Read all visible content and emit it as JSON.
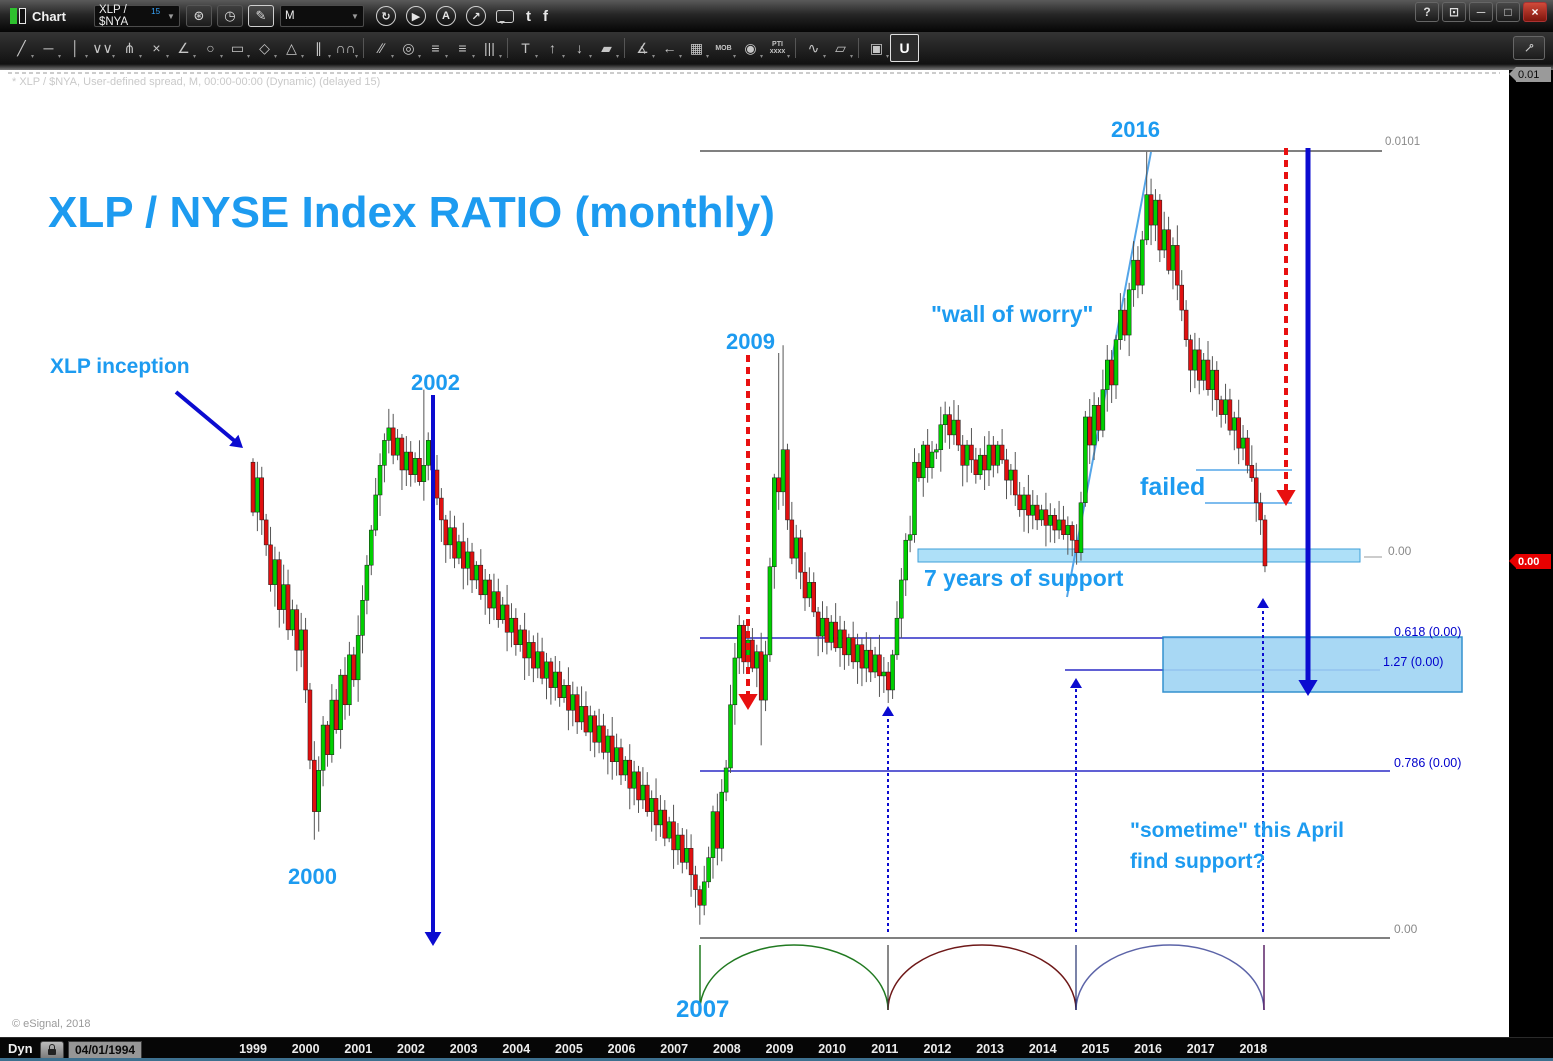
{
  "titlebar": {
    "title": "Chart",
    "symbol": "XLP / $NYA",
    "symbol_sup": "15",
    "interval": "M",
    "buttons": [
      {
        "name": "symbol-settings-gear-icon",
        "glyph": "⊛"
      },
      {
        "name": "time-template-clock-icon",
        "glyph": "◷"
      },
      {
        "name": "draw-pencil-icon",
        "glyph": "✎",
        "hl": true
      }
    ],
    "round_icons": [
      {
        "name": "reload-icon",
        "glyph": "↻"
      },
      {
        "name": "play-icon",
        "glyph": "▶"
      },
      {
        "name": "auto-trade-icon",
        "glyph": "A"
      },
      {
        "name": "send-icon",
        "glyph": "↗"
      }
    ],
    "share_icons": [
      {
        "name": "comment-bubble-icon",
        "glyph": ""
      },
      {
        "name": "twitter-icon",
        "glyph": "t"
      },
      {
        "name": "facebook-icon",
        "glyph": "f"
      }
    ],
    "window_buttons": [
      {
        "name": "help-button",
        "glyph": "?"
      },
      {
        "name": "dock-button",
        "glyph": "⊡"
      },
      {
        "name": "minimize-button",
        "glyph": "─"
      },
      {
        "name": "restore-button",
        "glyph": "□"
      },
      {
        "name": "close-button",
        "glyph": "×",
        "close": true
      }
    ]
  },
  "toolbar": {
    "tools": [
      {
        "name": "trend-line-tool",
        "glyph": "╱"
      },
      {
        "name": "horizontal-line-tool",
        "glyph": "─"
      },
      {
        "name": "vertical-line-tool",
        "glyph": "│"
      },
      {
        "name": "zigzag-tool",
        "glyph": "∨∨"
      },
      {
        "name": "pitchfork-tool",
        "glyph": "⋔"
      },
      {
        "name": "cross-line-tool",
        "glyph": "×"
      },
      {
        "name": "gann-fan-tool",
        "glyph": "∠"
      },
      {
        "name": "ellipse-tool",
        "glyph": "○"
      },
      {
        "name": "rectangle-tool",
        "glyph": "▭"
      },
      {
        "name": "diamond-tool",
        "glyph": "◇"
      },
      {
        "name": "triangle-tool",
        "glyph": "△"
      },
      {
        "name": "parallel-channel-tool",
        "glyph": "∥"
      },
      {
        "name": "cycle-lines-tool",
        "glyph": "∩∩"
      },
      {
        "sep": true
      },
      {
        "name": "regression-channel-tool",
        "glyph": "∕∕"
      },
      {
        "name": "fib-circles-tool",
        "glyph": "◎"
      },
      {
        "name": "fib-retracement-tool",
        "glyph": "≡"
      },
      {
        "name": "fib-extension-tool",
        "glyph": "≡"
      },
      {
        "name": "fib-time-zones-tool",
        "glyph": "|||"
      },
      {
        "sep": true
      },
      {
        "name": "text-tool",
        "glyph": "T"
      },
      {
        "name": "arrow-up-tool",
        "glyph": "↑"
      },
      {
        "name": "arrow-down-tool",
        "glyph": "↓"
      },
      {
        "name": "callout-tool",
        "glyph": "▰"
      },
      {
        "sep": true
      },
      {
        "name": "fan-lines-tool",
        "glyph": "∡"
      },
      {
        "name": "arrow-left-tool",
        "glyph": "←"
      },
      {
        "name": "grid-tool",
        "glyph": "▦"
      },
      {
        "name": "mob-study-tool",
        "glyph": "MOB",
        "small": true
      },
      {
        "name": "eye-indicator-tool",
        "glyph": "◉"
      },
      {
        "name": "pti-study-tool",
        "glyph": "PTI\nxxxx",
        "small": true
      },
      {
        "sep": true
      },
      {
        "name": "elliott-wave-tool",
        "glyph": "∿"
      },
      {
        "name": "eraser-tool",
        "glyph": "▱"
      },
      {
        "sep": true
      },
      {
        "name": "comment-note-tool",
        "glyph": "▣"
      },
      {
        "name": "magnet-snap-tool",
        "glyph": "U",
        "hl": true
      }
    ],
    "pin_glyph": "⊸"
  },
  "chart": {
    "info_line": "* XLP / $NYA, User-defined spread, M, 00:00-00:00 (Dynamic) (delayed 15)",
    "big_title": "XLP / NYSE Index RATIO (monthly)",
    "annotations": {
      "inception": "XLP inception",
      "y2002": "2002",
      "y2000": "2000",
      "y2009": "2009",
      "y2016": "2016",
      "y2007": "2007",
      "wall": "\"wall of worry\"",
      "failed": "failed",
      "support7": "7 years of support",
      "april": "\"sometime\" this April\nfind support?"
    },
    "levels": {
      "top_line": "0.0101",
      "axis_top": "0.01",
      "support_zero": "0.00",
      "fib_618": "0.618 (0.00)",
      "fib_127": "1.27 (0.00)",
      "fib_786": "0.786 (0.00)",
      "bottom_zero": "0.00",
      "last_price": "0.00"
    },
    "colors": {
      "annotation_blue": "#1d9bf0",
      "fib_blue": "#0000cc",
      "up_candle": "#00cf00",
      "down_candle": "#e01010",
      "red_arrow": "#e81010",
      "dark_blue_arrow": "#0b0bd0",
      "support_band": "#aee0f8",
      "gray_line": "#808080"
    }
  },
  "xaxis": {
    "years": [
      "1999",
      "2000",
      "2001",
      "2002",
      "2003",
      "2004",
      "2005",
      "2006",
      "2007",
      "2008",
      "2009",
      "2010",
      "2011",
      "2012",
      "2013",
      "2014",
      "2015",
      "2016",
      "2017",
      "2018"
    ]
  },
  "statusbar": {
    "mode": "Dyn",
    "date": "04/01/1994",
    "copyright": "© eSignal, 2018"
  },
  "chart_data": {
    "type": "candlestick",
    "title": "XLP / NYSE Index RATIO (monthly)",
    "x_start": "1999-01",
    "x_interval": "month",
    "units": "ratio x 1e-4 (approx, read from chart)",
    "open_first": 6.1,
    "closes": [
      5.46,
      5.9,
      5.36,
      5.04,
      4.53,
      4.85,
      4.21,
      4.53,
      3.95,
      4.21,
      3.69,
      3.95,
      3.18,
      2.28,
      1.62,
      2.15,
      2.73,
      2.35,
      3.05,
      2.67,
      3.37,
      2.99,
      3.63,
      3.31,
      3.88,
      4.33,
      4.78,
      5.23,
      5.68,
      6.06,
      6.38,
      6.54,
      6.19,
      6.41,
      6.0,
      6.23,
      5.94,
      6.15,
      5.85,
      6.06,
      6.38,
      6.0,
      5.64,
      5.36,
      5.04,
      5.26,
      4.87,
      5.08,
      4.74,
      4.95,
      4.59,
      4.78,
      4.4,
      4.59,
      4.23,
      4.44,
      4.08,
      4.27,
      3.92,
      4.1,
      3.76,
      3.95,
      3.59,
      3.79,
      3.46,
      3.67,
      3.33,
      3.54,
      3.21,
      3.41,
      3.08,
      3.24,
      2.92,
      3.12,
      2.77,
      2.97,
      2.64,
      2.85,
      2.51,
      2.72,
      2.38,
      2.59,
      2.26,
      2.44,
      2.09,
      2.28,
      1.92,
      2.13,
      1.77,
      1.96,
      1.62,
      1.79,
      1.45,
      1.64,
      1.28,
      1.49,
      1.13,
      1.32,
      0.97,
      1.15,
      0.81,
      0.62,
      0.42,
      0.72,
      1.03,
      1.62,
      1.15,
      1.87,
      2.18,
      2.99,
      3.59,
      4.01,
      3.54,
      3.82,
      3.46,
      3.67,
      3.05,
      3.63,
      4.76,
      5.9,
      5.72,
      6.26,
      5.36,
      4.87,
      5.13,
      4.69,
      4.36,
      4.56,
      4.18,
      3.87,
      4.1,
      3.79,
      4.05,
      3.72,
      3.95,
      3.63,
      3.85,
      3.54,
      3.76,
      3.46,
      3.69,
      3.41,
      3.63,
      3.36,
      3.41,
      3.18,
      3.63,
      4.1,
      4.59,
      5.1,
      5.17,
      6.1,
      5.9,
      6.32,
      6.03,
      6.23,
      6.26,
      6.58,
      6.71,
      6.45,
      6.64,
      6.32,
      6.06,
      6.32,
      6.13,
      5.94,
      6.19,
      6.0,
      6.32,
      6.06,
      6.32,
      6.13,
      5.87,
      6.0,
      5.68,
      5.49,
      5.68,
      5.42,
      5.55,
      5.36,
      5.49,
      5.29,
      5.42,
      5.23,
      5.36,
      5.17,
      5.29,
      5.1,
      4.94,
      5.58,
      6.68,
      6.32,
      6.83,
      6.51,
      7.03,
      7.41,
      7.09,
      7.67,
      8.05,
      7.73,
      8.31,
      8.69,
      8.37,
      8.95,
      9.53,
      9.14,
      9.46,
      8.82,
      9.08,
      8.56,
      8.88,
      8.37,
      8.05,
      7.67,
      7.28,
      7.54,
      7.15,
      7.41,
      7.03,
      7.28,
      6.9,
      6.71,
      6.9,
      6.51,
      6.67,
      6.28,
      6.41,
      6.06,
      5.9,
      5.58,
      5.36,
      4.77
    ],
    "wick_highs": {
      "39": 7.03,
      "120": 7.5,
      "121": 7.6,
      "204": 10.08
    },
    "wick_lows": {
      "14": 1.26,
      "102": 0.17,
      "116": 2.47,
      "231": 4.69
    },
    "levels": {
      "top_resistance": "0.0101",
      "support_zone": "0.00",
      "fib_0618": "0.618 (0.00)",
      "fib_127": "1.27 (0.00)",
      "fib_0786": "0.786 (0.00)",
      "baseline": "0.00"
    },
    "cycle_arcs": [
      {
        "from": "2007-07",
        "to": "2011-02"
      },
      {
        "from": "2011-02",
        "to": "2014-10"
      },
      {
        "from": "2014-10",
        "to": "2018-04"
      }
    ]
  }
}
